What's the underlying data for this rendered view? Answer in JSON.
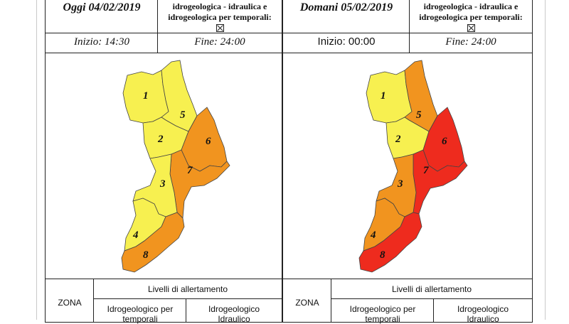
{
  "colors": {
    "yellow": "#f7f050",
    "orange": "#f1941f",
    "red": "#ee2b1e",
    "border": "#222222"
  },
  "left": {
    "date": "Oggi 04/02/2019",
    "alert_line1": "idrogeologica - idraulica e",
    "alert_line2": "idrogeologica per temporali:",
    "start": "Inizio: 14:30",
    "end": "Fine: 24:00",
    "regions": [
      {
        "label": "1",
        "level": "yellow"
      },
      {
        "label": "2",
        "level": "yellow"
      },
      {
        "label": "3",
        "level": "yellow"
      },
      {
        "label": "4",
        "level": "yellow"
      },
      {
        "label": "5",
        "level": "yellow"
      },
      {
        "label": "6",
        "level": "orange"
      },
      {
        "label": "7",
        "level": "orange"
      },
      {
        "label": "8",
        "level": "orange"
      }
    ],
    "table": {
      "zona": "ZONA",
      "levels_header": "Livelli di allertamento",
      "col1_line1": "Idrogeologico per",
      "col1_line2": "temporali",
      "col2_line1": "Idrogeologico",
      "col2_line2": "Idraulico"
    }
  },
  "right": {
    "date": "Domani 05/02/2019",
    "alert_line1": "idrogeologica - idraulica e",
    "alert_line2": "idrogeologica per temporali:",
    "start": "Inizio: 00:00",
    "end": "Fine: 24:00",
    "regions": [
      {
        "label": "1",
        "level": "yellow"
      },
      {
        "label": "2",
        "level": "yellow"
      },
      {
        "label": "3",
        "level": "orange"
      },
      {
        "label": "4",
        "level": "orange"
      },
      {
        "label": "5",
        "level": "orange"
      },
      {
        "label": "6",
        "level": "red"
      },
      {
        "label": "7",
        "level": "red"
      },
      {
        "label": "8",
        "level": "red"
      }
    ],
    "table": {
      "zona": "ZONA",
      "levels_header": "Livelli di allertamento",
      "col1_line1": "Idrogeologico per",
      "col1_line2": "temporali",
      "col2_line1": "Idrogeologico",
      "col2_line2": "Idraulico"
    }
  }
}
